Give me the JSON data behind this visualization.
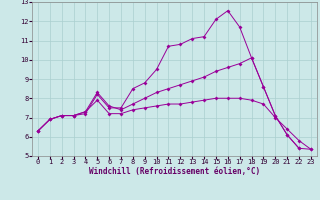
{
  "xlabel": "Windchill (Refroidissement éolien,°C)",
  "background_color": "#cce8e8",
  "grid_color": "#aacfcf",
  "line_color": "#990099",
  "axis_color": "#888888",
  "xlim": [
    -0.5,
    23.5
  ],
  "ylim": [
    5,
    13
  ],
  "xticks": [
    0,
    1,
    2,
    3,
    4,
    5,
    6,
    7,
    8,
    9,
    10,
    11,
    12,
    13,
    14,
    15,
    16,
    17,
    18,
    19,
    20,
    21,
    22,
    23
  ],
  "yticks": [
    5,
    6,
    7,
    8,
    9,
    10,
    11,
    12,
    13
  ],
  "line1_x": [
    0,
    1,
    2,
    3,
    4,
    5,
    6,
    7,
    8,
    9,
    10,
    11,
    12,
    13,
    14,
    15,
    16,
    17,
    18,
    19,
    20,
    21,
    22
  ],
  "line1_y": [
    6.3,
    6.9,
    7.1,
    7.1,
    7.2,
    8.2,
    7.5,
    7.5,
    8.5,
    8.8,
    9.5,
    10.7,
    10.8,
    11.1,
    11.2,
    12.1,
    12.55,
    11.7,
    10.1,
    8.6,
    7.1,
    6.1,
    5.4
  ],
  "line2_x": [
    0,
    1,
    2,
    3,
    4,
    5,
    6,
    7,
    8,
    9,
    10,
    11,
    12,
    13,
    14,
    15,
    16,
    17,
    18,
    19,
    20,
    21,
    22,
    23
  ],
  "line2_y": [
    6.3,
    6.9,
    7.1,
    7.1,
    7.3,
    8.3,
    7.6,
    7.4,
    7.7,
    8.0,
    8.3,
    8.5,
    8.7,
    8.9,
    9.1,
    9.4,
    9.6,
    9.8,
    10.1,
    8.6,
    7.1,
    6.1,
    5.4,
    5.35
  ],
  "line3_x": [
    0,
    1,
    2,
    3,
    4,
    5,
    6,
    7,
    8,
    9,
    10,
    11,
    12,
    13,
    14,
    15,
    16,
    17,
    18,
    19,
    20,
    21,
    22,
    23
  ],
  "line3_y": [
    6.3,
    6.9,
    7.1,
    7.1,
    7.3,
    7.9,
    7.2,
    7.2,
    7.4,
    7.5,
    7.6,
    7.7,
    7.7,
    7.8,
    7.9,
    8.0,
    8.0,
    8.0,
    7.9,
    7.7,
    7.0,
    6.4,
    5.8,
    5.35
  ],
  "tick_fontsize": 5.0,
  "xlabel_fontsize": 5.5,
  "marker_size": 2.0,
  "line_width": 0.7
}
